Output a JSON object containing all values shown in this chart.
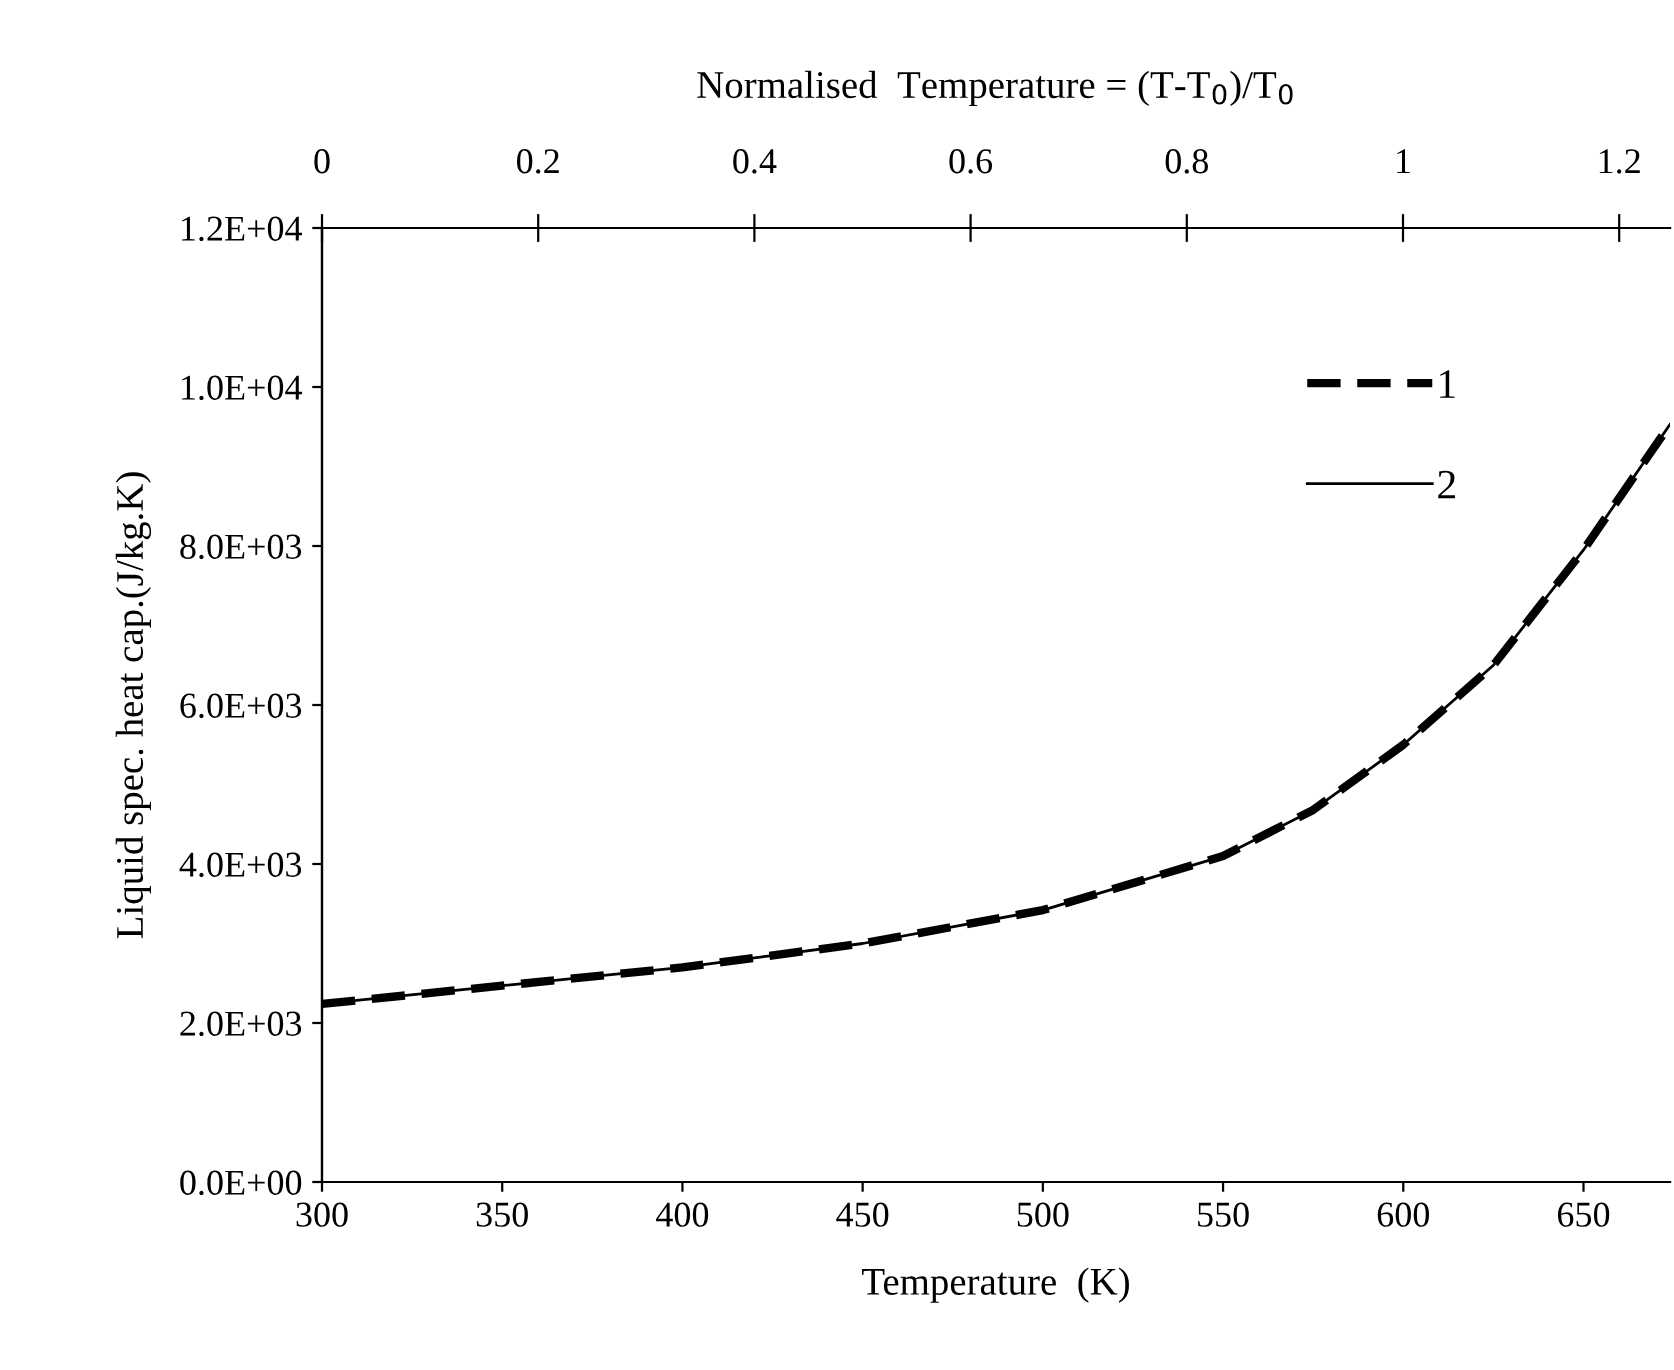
{
  "chart_data": {
    "type": "line",
    "xlabel": "Temperature  (K)",
    "ylabel": "Liquid spec. heat cap.(J/kg.K)",
    "x2label": "Normalised  Temperature = (T-T$_{0}$)/T$_{0}$",
    "x": [
      300,
      350,
      400,
      450,
      500,
      550,
      575,
      600,
      625,
      650,
      674
    ],
    "series": [
      {
        "name": "1",
        "color": "#000000",
        "line_style": "dashed",
        "values": [
          2240,
          2470,
          2700,
          3000,
          3420,
          4100,
          4680,
          5500,
          6500,
          7950,
          9530
        ]
      },
      {
        "name": "2",
        "color": "#000000",
        "line_style": "solid",
        "values": [
          2240,
          2470,
          2700,
          3000,
          3420,
          4100,
          4680,
          5500,
          6500,
          7950,
          9530
        ]
      }
    ],
    "xlim": [
      300,
      674
    ],
    "xticks": [
      300,
      350,
      400,
      450,
      500,
      550,
      600,
      650
    ],
    "x2lim": [
      0,
      1.247
    ],
    "x2ticks": [
      0,
      0.2,
      0.4,
      0.6,
      0.8,
      1,
      1.2
    ],
    "ylim": [
      0,
      12000
    ],
    "yticks": [
      {
        "value": 0,
        "label": "0.0E+00"
      },
      {
        "value": 2000,
        "label": "2.0E+03"
      },
      {
        "value": 4000,
        "label": "4.0E+03"
      },
      {
        "value": 6000,
        "label": "6.0E+03"
      },
      {
        "value": 8000,
        "label": "8.0E+03"
      },
      {
        "value": 10000,
        "label": "1.0E+04"
      },
      {
        "value": 12000,
        "label": "1.2E+04"
      }
    ],
    "grid": false,
    "legend": "right"
  }
}
